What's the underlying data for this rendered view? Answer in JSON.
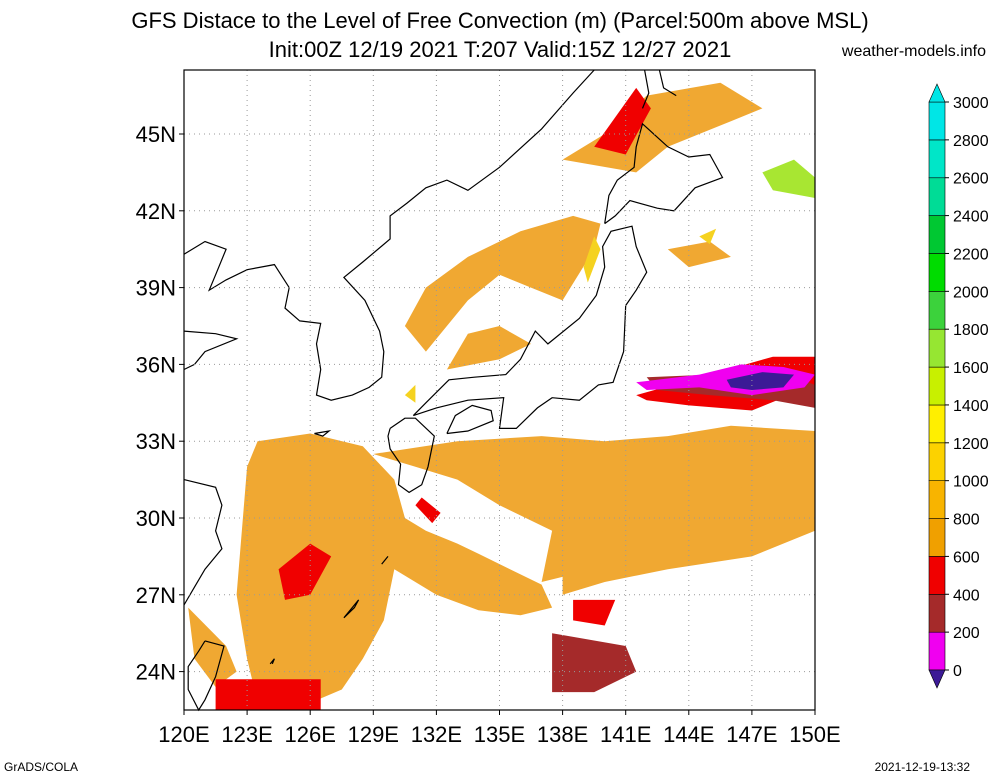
{
  "title": "GFS Distace to the Level of Free Convection (m) (Parcel:500m above MSL)",
  "subtitle": "Init:00Z 12/19 2021 T:207 Valid:15Z 12/27 2021",
  "website": "weather-models.info",
  "footer_left": "GrADS/COLA",
  "footer_right": "2021-12-19-13:32",
  "map": {
    "lon_range": [
      120,
      150
    ],
    "lat_range": [
      22.5,
      47.5
    ],
    "lon_labels": [
      "120E",
      "123E",
      "126E",
      "129E",
      "132E",
      "135E",
      "138E",
      "141E",
      "144E",
      "147E",
      "150E"
    ],
    "lon_values": [
      120,
      123,
      126,
      129,
      132,
      135,
      138,
      141,
      144,
      147,
      150
    ],
    "lat_labels": [
      "24N",
      "27N",
      "30N",
      "33N",
      "36N",
      "39N",
      "42N",
      "45N"
    ],
    "lat_values": [
      24,
      27,
      30,
      33,
      36,
      39,
      42,
      45
    ],
    "grid": "dotted"
  },
  "colorbar": {
    "labels": [
      "0",
      "200",
      "400",
      "600",
      "800",
      "1000",
      "1200",
      "1400",
      "1600",
      "1800",
      "2000",
      "2200",
      "2400",
      "2600",
      "2800",
      "3000"
    ],
    "colors": [
      "#3c1a96",
      "#f000f0",
      "#a52a2a",
      "#f00000",
      "#f0a000",
      "#f8b400",
      "#fcd200",
      "#ffef00",
      "#c8f000",
      "#96e632",
      "#3cd23c",
      "#00dc00",
      "#00c832",
      "#00dc96",
      "#00e6c8",
      "#00e6e6"
    ],
    "extends": "both"
  },
  "field_colors": {
    "orange": "#f0a832",
    "yellow": "#f5d220",
    "red": "#f00000",
    "brown": "#a52a2a",
    "magenta": "#f000f0",
    "purple": "#3c1a96",
    "lime": "#a8e632"
  }
}
